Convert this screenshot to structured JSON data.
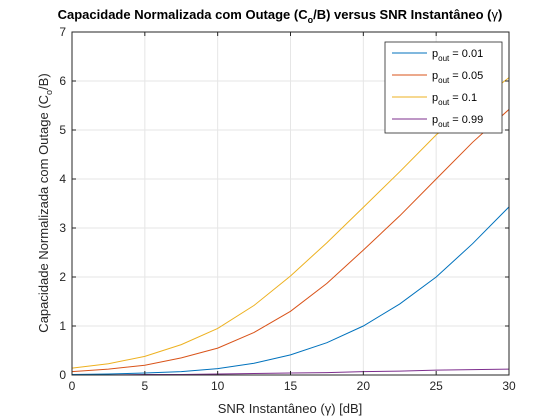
{
  "chart_data": {
    "type": "line",
    "title": "Capacidade Normalizada com Outage (C",
    "title_sub": "o",
    "title_rest": "/B) versus SNR Instantâneo (",
    "title_gamma": "γ",
    "title_end": ")",
    "xlabel": "SNR Instantâneo (",
    "xlabel_gamma": "γ",
    "xlabel_rest": ") [dB]",
    "ylabel": "Capacidade Normalizada com Outage (C",
    "ylabel_sub": "o",
    "ylabel_rest": "/B)",
    "xlim": [
      0,
      30
    ],
    "ylim": [
      0,
      7
    ],
    "xticks": [
      0,
      5,
      10,
      15,
      20,
      25,
      30
    ],
    "yticks": [
      0,
      1,
      2,
      3,
      4,
      5,
      6,
      7
    ],
    "grid": true,
    "legend_position": "top-right",
    "x": [
      0,
      2.5,
      5,
      7.5,
      10,
      12.5,
      15,
      17.5,
      20,
      22.5,
      25,
      27.5,
      30
    ],
    "series": [
      {
        "name_main": "p",
        "name_sub": "out",
        "name_rest": " = 0.01",
        "color": "#0072BD",
        "values": [
          0.01,
          0.02,
          0.04,
          0.07,
          0.13,
          0.24,
          0.41,
          0.66,
          1.0,
          1.45,
          2.0,
          2.68,
          3.43
        ]
      },
      {
        "name_main": "p",
        "name_sub": "out",
        "name_rest": " = 0.05",
        "color": "#D95319",
        "values": [
          0.07,
          0.12,
          0.2,
          0.35,
          0.55,
          0.87,
          1.3,
          1.87,
          2.55,
          3.25,
          4.0,
          4.75,
          5.42
        ]
      },
      {
        "name_main": "p",
        "name_sub": "out",
        "name_rest": " = 0.1",
        "color": "#EDB120",
        "values": [
          0.14,
          0.23,
          0.38,
          0.62,
          0.95,
          1.42,
          2.02,
          2.7,
          3.42,
          4.15,
          4.9,
          5.5,
          6.07
        ]
      },
      {
        "name_main": "p",
        "name_sub": "out",
        "name_rest": " = 0.99",
        "color": "#7E2F8E",
        "values": [
          0.0,
          0.0,
          0.01,
          0.01,
          0.02,
          0.03,
          0.04,
          0.05,
          0.07,
          0.08,
          0.1,
          0.11,
          0.12
        ]
      }
    ]
  }
}
